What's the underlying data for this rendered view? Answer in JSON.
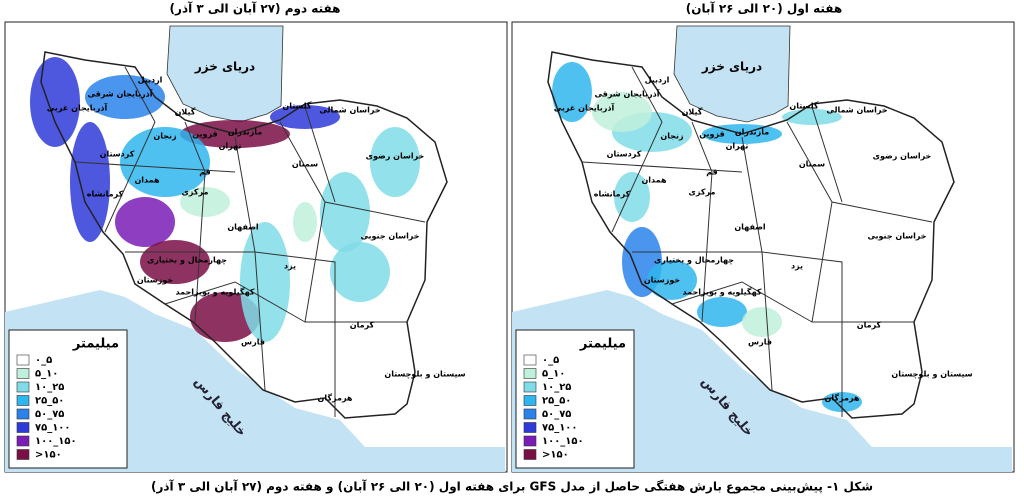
{
  "panels": [
    {
      "title": "هفته دوم (۲۷ آبان الی ۳ آذر)"
    },
    {
      "title": "هفته اول (۲۰ الی ۲۶ آبان)"
    }
  ],
  "caption": "شکل ۱- پیش‌بینی مجموع بارش هفتگی حاصل از مدل GFS برای هفته اول (۲۰ الی ۲۶ آبان) و هفته دوم (۲۷ آبان الی ۳ آذر)",
  "seas": [
    "دریای خزر",
    "خلیج فارس"
  ],
  "legend": {
    "title": "میلیمتر",
    "items": [
      {
        "label": "۰_۵",
        "color": "#ffffff"
      },
      {
        "label": "۵_۱۰",
        "color": "#bff0dc"
      },
      {
        "label": "۱۰_۲۵",
        "color": "#7fdce8"
      },
      {
        "label": "۲۵_۵۰",
        "color": "#2fb6ef"
      },
      {
        "label": "۵۰_۷۵",
        "color": "#2a82ea"
      },
      {
        "label": "۷۵_۱۰۰",
        "color": "#2f3bd8"
      },
      {
        "label": "۱۰۰_۱۵۰",
        "color": "#7a1cb5"
      },
      {
        "label": ">۱۵۰",
        "color": "#7a0f45"
      }
    ]
  },
  "provinces": [
    "اردبیل",
    "آذربایجان شرقی",
    "آذربایجان غربی",
    "گیلان",
    "مازندران",
    "گلستان",
    "خراسان شمالی",
    "زنجان",
    "قزوین",
    "تهران",
    "کردستان",
    "همدان",
    "قم",
    "مرکزی",
    "کرمانشاه",
    "سمنان",
    "خراسان رضوی",
    "اصفهان",
    "خراسان جنوبی",
    "چهارمحال و بختیاری",
    "یزد",
    "خوزستان",
    "کهگیلویه و بویراحمد",
    "کرمان",
    "فارس",
    "سیستان و بلوچستان",
    "هرمزگان"
  ]
}
